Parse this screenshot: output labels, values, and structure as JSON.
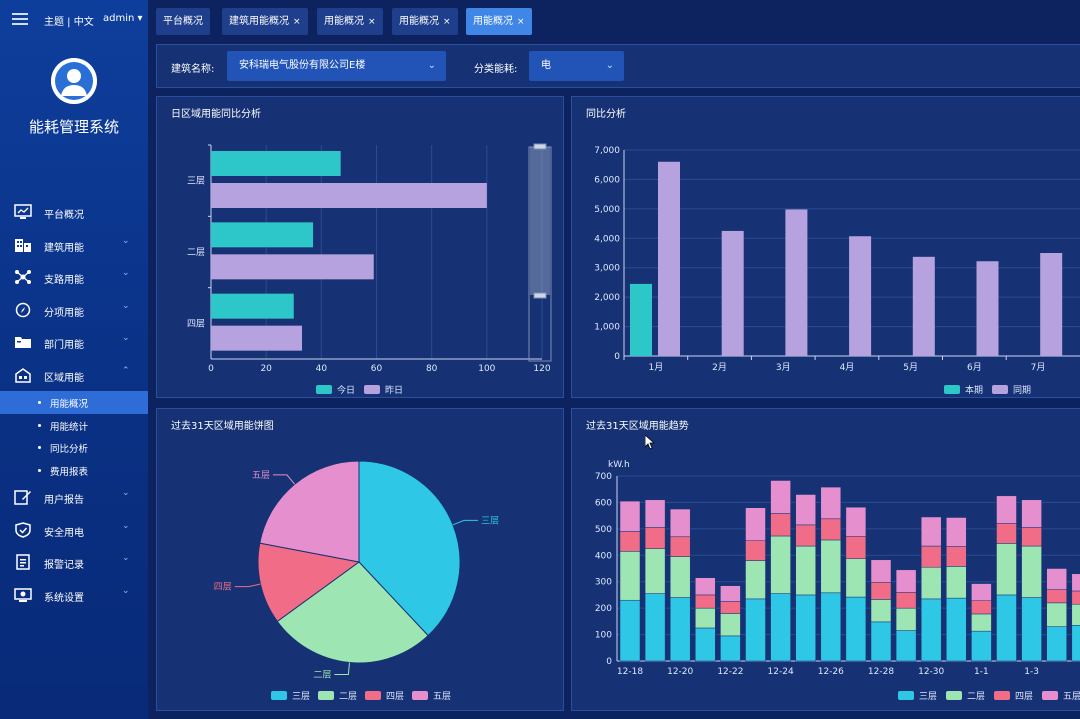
{
  "sidebar": {
    "theme_label": "主题 | 中文",
    "admin_label": "admin ▾",
    "system_title": "能耗管理系统",
    "items": [
      {
        "label": "平台概况",
        "icon": "monitor-icon",
        "chevron": ""
      },
      {
        "label": "建筑用能",
        "icon": "building-icon",
        "chevron": "⌄"
      },
      {
        "label": "支路用能",
        "icon": "branch-icon",
        "chevron": "⌄"
      },
      {
        "label": "分项用能",
        "icon": "compass-icon",
        "chevron": "⌄"
      },
      {
        "label": "部门用能",
        "icon": "folder-icon",
        "chevron": "⌄"
      },
      {
        "label": "区域用能",
        "icon": "area-icon",
        "chevron": "⌃"
      }
    ],
    "sub_items": [
      "用能概况",
      "用能统计",
      "同比分析",
      "费用报表"
    ],
    "items_after": [
      {
        "label": "用户报告",
        "icon": "edit-icon",
        "chevron": "⌄"
      },
      {
        "label": "安全用电",
        "icon": "shield-icon",
        "chevron": "⌄"
      },
      {
        "label": "报警记录",
        "icon": "report-icon",
        "chevron": "⌄"
      },
      {
        "label": "系统设置",
        "icon": "settings-icon",
        "chevron": "⌄"
      }
    ]
  },
  "tabs": [
    {
      "label": "平台概况",
      "close": ""
    },
    {
      "label": "建筑用能概况",
      "close": "×"
    },
    {
      "label": "用能概况",
      "close": "×"
    },
    {
      "label": "用能概况",
      "close": "×"
    },
    {
      "label": "用能概况",
      "close": "×"
    }
  ],
  "filters": {
    "building_label": "建筑名称:",
    "building_value": "安科瑞电气股份有限公司E楼",
    "category_label": "分类能耗:",
    "category_value": "电",
    "chevron": "⌄"
  },
  "panels": {
    "daily_title": "日区域用能同比分析",
    "yoy_title": "同比分析",
    "pie_title": "过去31天区域用能饼图",
    "trend_title": "过去31天区域用能趋势"
  },
  "colors": {
    "teal": "#2ec7c9",
    "lavender": "#b6a2de",
    "cyan": "#2ec7e6",
    "mint": "#9de6b3",
    "pink": "#f16c86",
    "orchid": "#e58fce"
  },
  "chart_data": [
    {
      "type": "bar",
      "orientation": "horizontal",
      "title": "日区域用能同比分析",
      "categories": [
        "三层",
        "二层",
        "四层"
      ],
      "series": [
        {
          "name": "今日",
          "values": [
            47,
            37,
            30
          ]
        },
        {
          "name": "昨日",
          "values": [
            100,
            59,
            33
          ]
        }
      ],
      "xlim": [
        0,
        120
      ],
      "xticks": [
        0,
        20,
        40,
        60,
        80,
        100,
        120
      ]
    },
    {
      "type": "bar",
      "title": "同比分析",
      "categories": [
        "1月",
        "2月",
        "3月",
        "4月",
        "5月",
        "6月",
        "7月"
      ],
      "series": [
        {
          "name": "本期",
          "values": [
            2450,
            null,
            null,
            null,
            null,
            null,
            null
          ]
        },
        {
          "name": "同期",
          "values": [
            6600,
            4250,
            4980,
            4070,
            3370,
            3220,
            3500
          ]
        }
      ],
      "ylim": [
        0,
        7000
      ],
      "yticks": [
        0,
        1000,
        2000,
        3000,
        4000,
        5000,
        6000,
        7000
      ],
      "ytick_labels": [
        "0",
        "1,000",
        "2,000",
        "3,000",
        "4,000",
        "5,000",
        "6,000",
        "7,000"
      ]
    },
    {
      "type": "pie",
      "title": "过去31天区域用能饼图",
      "slices": [
        {
          "name": "三层",
          "value": 38
        },
        {
          "name": "二层",
          "value": 27
        },
        {
          "name": "四层",
          "value": 13
        },
        {
          "name": "五层",
          "value": 22
        }
      ]
    },
    {
      "type": "bar",
      "stacked": true,
      "title": "过去31天区域用能趋势",
      "ylabel": "kW.h",
      "ylim": [
        0,
        700
      ],
      "yticks": [
        0,
        100,
        200,
        300,
        400,
        500,
        600,
        700
      ],
      "x_tick_labels": [
        "12-18",
        "12-20",
        "12-22",
        "12-24",
        "12-26",
        "12-28",
        "12-30",
        "1-1",
        "1-3"
      ],
      "series": [
        {
          "name": "三层",
          "values": [
            230,
            255,
            240,
            125,
            95,
            235,
            255,
            250,
            258,
            242,
            148,
            115,
            235,
            238,
            113,
            250,
            240,
            130,
            135
          ]
        },
        {
          "name": "二层",
          "values": [
            185,
            170,
            155,
            75,
            85,
            145,
            218,
            185,
            200,
            145,
            85,
            85,
            120,
            120,
            65,
            195,
            195,
            90,
            80
          ]
        },
        {
          "name": "四层",
          "values": [
            75,
            80,
            75,
            50,
            45,
            75,
            85,
            80,
            80,
            85,
            65,
            60,
            80,
            75,
            50,
            75,
            70,
            50,
            50
          ]
        },
        {
          "name": "五层",
          "values": [
            115,
            105,
            105,
            65,
            60,
            125,
            125,
            115,
            120,
            110,
            85,
            85,
            110,
            110,
            65,
            105,
            105,
            80,
            65
          ]
        }
      ]
    }
  ]
}
